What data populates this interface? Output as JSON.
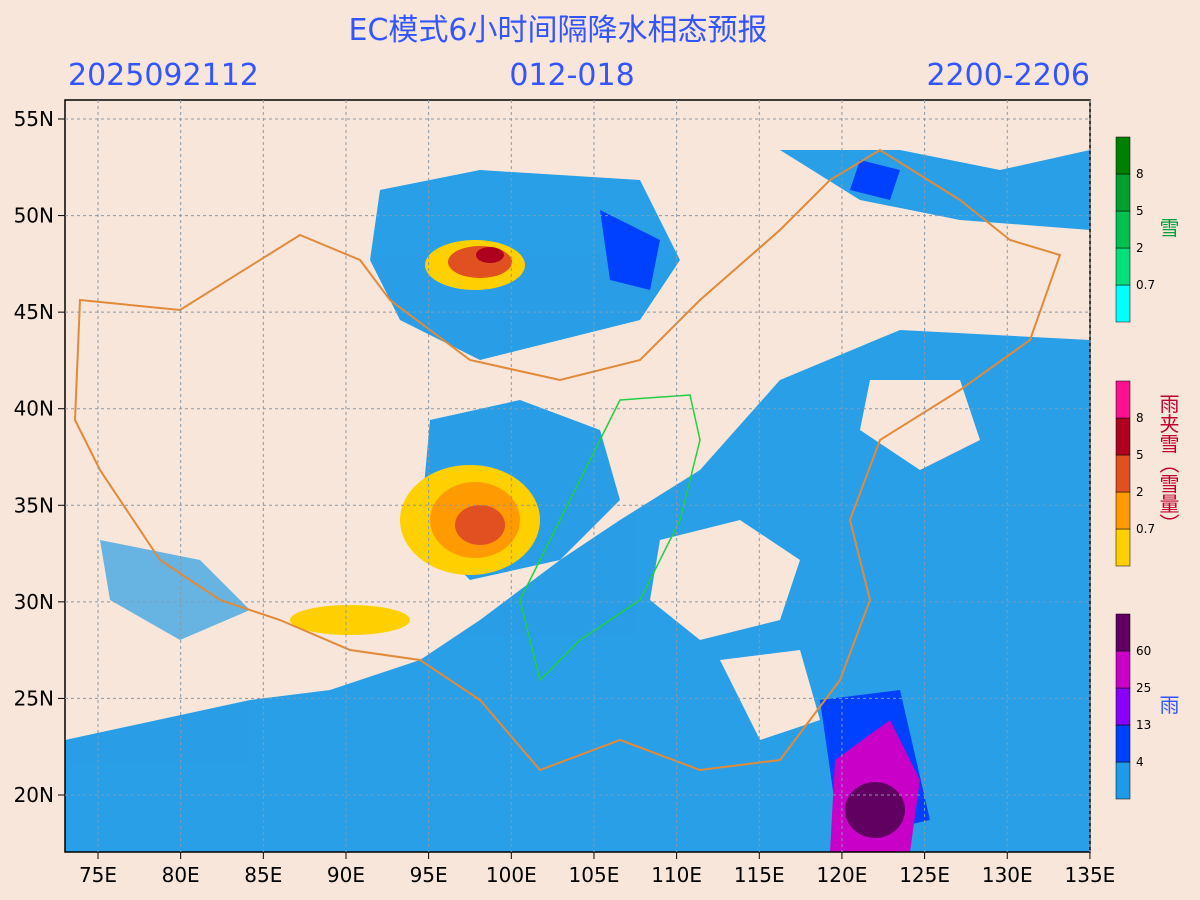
{
  "header": {
    "title": "EC模式6小时间隔降水相态预报",
    "init": "2025092112",
    "lead": "012-018",
    "valid": "2200-2206"
  },
  "map": {
    "lat_labels": [
      "55N",
      "50N",
      "45N",
      "40N",
      "35N",
      "30N",
      "25N",
      "20N"
    ],
    "lon_labels": [
      "75E",
      "80E",
      "85E",
      "90E",
      "95E",
      "100E",
      "105E",
      "110E",
      "115E",
      "120E",
      "125E",
      "130E",
      "135E"
    ]
  },
  "legends": [
    {
      "name": "雪",
      "levels": [
        "0.7",
        "2",
        "5",
        "8"
      ],
      "colors": [
        "#00ffff",
        "#00e07a",
        "#00c050",
        "#00a030",
        "#008000"
      ]
    },
    {
      "name": "雨夹雪（雪量）",
      "levels": [
        "0.7",
        "2",
        "5",
        "8"
      ],
      "colors": [
        "#ffd000",
        "#ff9a00",
        "#e05020",
        "#b00020",
        "#ff1090"
      ]
    },
    {
      "name": "雨",
      "levels": [
        "4",
        "13",
        "25",
        "60"
      ],
      "colors": [
        "#1e9be8",
        "#0040ff",
        "#8a00ff",
        "#c800c8",
        "#600060"
      ]
    }
  ]
}
